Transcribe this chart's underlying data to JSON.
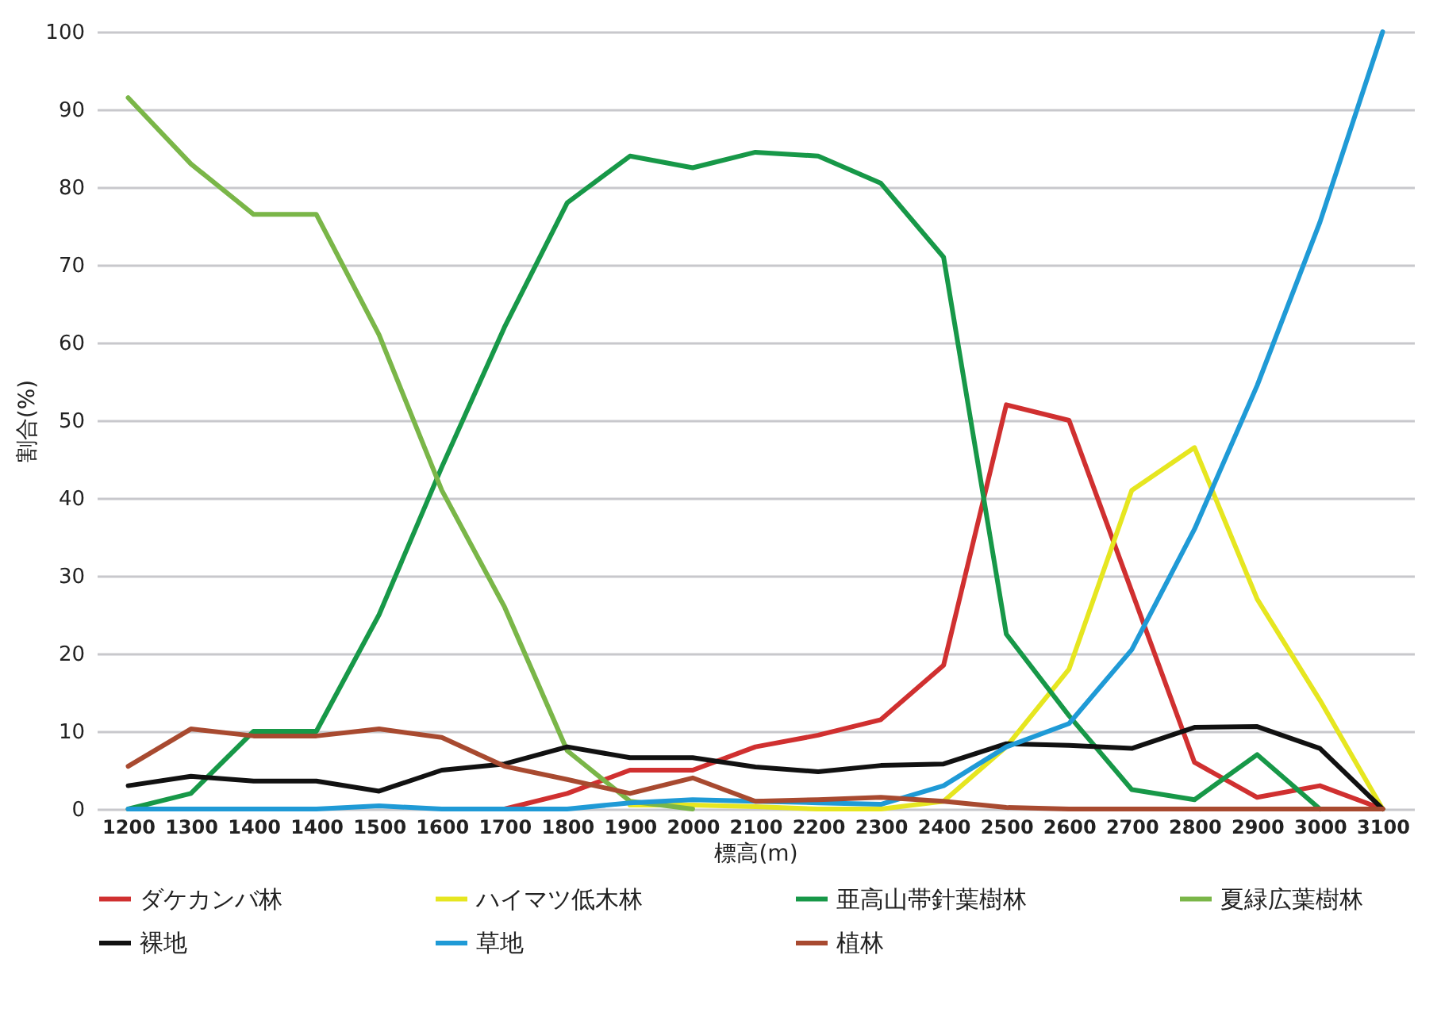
{
  "chart_data": {
    "type": "line",
    "xlabel": "標高(m)",
    "ylabel": "割合(%)",
    "categories": [
      "1200",
      "1300",
      "1400",
      "1400",
      "1500",
      "1600",
      "1700",
      "1800",
      "1900",
      "2000",
      "2100",
      "2200",
      "2300",
      "2400",
      "2500",
      "2600",
      "2700",
      "2800",
      "2900",
      "3000",
      "3100"
    ],
    "ylim": [
      0,
      100
    ],
    "yticks": [
      0,
      10,
      20,
      30,
      40,
      50,
      60,
      70,
      80,
      90,
      100
    ],
    "grid": "y",
    "legend": "bottom",
    "marker": "none",
    "line_style": "solid",
    "series": [
      {
        "name": "ダケカンバ林",
        "color": "#d03030",
        "values": [
          null,
          null,
          null,
          null,
          null,
          null,
          0,
          2,
          5,
          5,
          8,
          9.5,
          11.5,
          18.5,
          52,
          50,
          28,
          6,
          1.5,
          3,
          0
        ]
      },
      {
        "name": "ハイマツ低木林",
        "color": "#e6e620",
        "values": [
          null,
          null,
          null,
          null,
          null,
          null,
          null,
          null,
          0.5,
          0.5,
          0.3,
          0,
          0,
          1,
          8,
          18,
          41,
          46.5,
          27,
          14,
          0
        ]
      },
      {
        "name": "亜高山帯針葉樹林",
        "color": "#179848",
        "values": [
          0,
          2,
          10,
          10,
          25,
          44,
          62,
          78,
          84,
          82.5,
          84.5,
          84,
          80.5,
          71,
          22.5,
          12,
          2.5,
          1.2,
          7,
          0,
          null
        ]
      },
      {
        "name": "夏緑広葉樹林",
        "color": "#7ab648",
        "values": [
          91.5,
          83,
          76.5,
          76.5,
          61,
          41,
          26,
          7.5,
          1,
          0,
          null,
          null,
          null,
          null,
          null,
          null,
          null,
          null,
          null,
          null,
          null
        ]
      },
      {
        "name": "裸地",
        "color": "#111111",
        "values": [
          3,
          4.2,
          3.6,
          3.6,
          2.3,
          5,
          5.8,
          8,
          6.6,
          6.6,
          5.4,
          4.8,
          5.6,
          5.8,
          8.4,
          8.2,
          7.8,
          10.5,
          10.6,
          7.8,
          0
        ]
      },
      {
        "name": "草地",
        "color": "#1f9ad6",
        "values": [
          0,
          0,
          0,
          0,
          0.4,
          0,
          0,
          0,
          0.8,
          1.2,
          1,
          0.8,
          0.6,
          3,
          8,
          11,
          20.5,
          36,
          54.5,
          75.5,
          100
        ]
      },
      {
        "name": "植林",
        "color": "#a84a30",
        "values": [
          5.5,
          10.3,
          9.4,
          9.4,
          10.3,
          9.2,
          5.5,
          3.8,
          2,
          4,
          1,
          1.2,
          1.5,
          1,
          0.2,
          0,
          0,
          0,
          0,
          0,
          0
        ]
      }
    ]
  }
}
